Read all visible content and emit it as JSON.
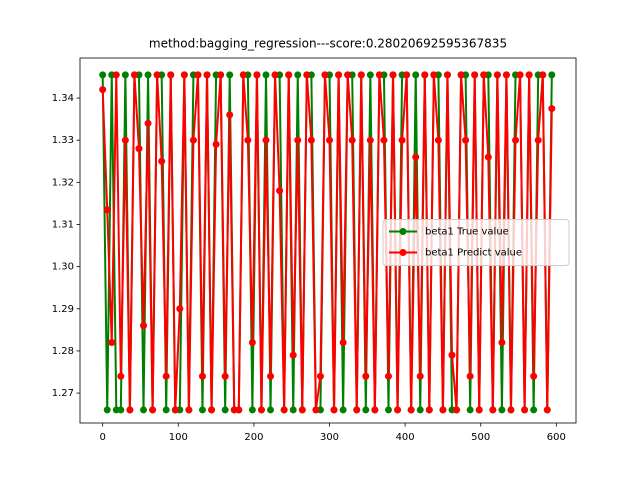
{
  "chart_data": {
    "type": "line",
    "title": "method:bagging_regression---score:0.28020692595367835",
    "x": [
      0,
      6,
      12,
      18,
      24,
      30,
      36,
      42,
      48,
      54,
      60,
      66,
      72,
      78,
      84,
      90,
      96,
      102,
      108,
      114,
      120,
      126,
      132,
      138,
      144,
      150,
      156,
      162,
      168,
      174,
      180,
      186,
      192,
      198,
      204,
      210,
      216,
      222,
      228,
      234,
      240,
      246,
      252,
      258,
      264,
      270,
      276,
      282,
      288,
      294,
      300,
      306,
      312,
      318,
      324,
      330,
      336,
      342,
      348,
      354,
      360,
      366,
      372,
      378,
      384,
      390,
      396,
      402,
      408,
      414,
      420,
      426,
      432,
      438,
      444,
      450,
      456,
      462,
      468,
      474,
      480,
      486,
      492,
      498,
      504,
      510,
      516,
      522,
      528,
      534,
      540,
      546,
      552,
      558,
      564,
      570,
      576,
      582,
      588,
      594
    ],
    "series": [
      {
        "name": "beta1 True value",
        "color": "#008000",
        "values": [
          1.3455,
          1.266,
          1.3455,
          1.266,
          1.266,
          1.3455,
          1.266,
          1.3455,
          1.3455,
          1.266,
          1.3455,
          1.266,
          1.3455,
          1.3455,
          1.266,
          1.3455,
          1.266,
          1.266,
          1.3455,
          1.266,
          1.3455,
          1.3455,
          1.266,
          1.3455,
          1.266,
          1.3455,
          1.3455,
          1.266,
          1.3455,
          1.266,
          1.266,
          1.3455,
          1.3455,
          1.266,
          1.3455,
          1.266,
          1.3455,
          1.266,
          1.3455,
          1.3455,
          1.266,
          1.3455,
          1.266,
          1.3455,
          1.266,
          1.3455,
          1.3455,
          1.266,
          1.266,
          1.3455,
          1.3455,
          1.266,
          1.3455,
          1.266,
          1.3455,
          1.3455,
          1.266,
          1.3455,
          1.266,
          1.3455,
          1.266,
          1.3455,
          1.3455,
          1.266,
          1.3455,
          1.266,
          1.3455,
          1.3455,
          1.266,
          1.3455,
          1.266,
          1.3455,
          1.266,
          1.3455,
          1.3455,
          1.266,
          1.3455,
          1.266,
          1.266,
          1.3455,
          1.3455,
          1.266,
          1.3455,
          1.266,
          1.3455,
          1.3455,
          1.266,
          1.3455,
          1.266,
          1.3455,
          1.266,
          1.3455,
          1.3455,
          1.266,
          1.3455,
          1.266,
          1.3455,
          1.3455,
          1.266,
          1.3455
        ]
      },
      {
        "name": "beta1 Predict value",
        "color": "#ff0000",
        "values": [
          1.342,
          1.3135,
          1.282,
          1.3455,
          1.274,
          1.33,
          1.266,
          1.3455,
          1.328,
          1.286,
          1.334,
          1.266,
          1.3455,
          1.325,
          1.274,
          1.3455,
          1.266,
          1.29,
          1.3455,
          1.266,
          1.33,
          1.3455,
          1.274,
          1.3455,
          1.266,
          1.329,
          1.3455,
          1.274,
          1.336,
          1.266,
          1.266,
          1.3455,
          1.33,
          1.282,
          1.3455,
          1.266,
          1.33,
          1.274,
          1.3455,
          1.318,
          1.266,
          1.3455,
          1.279,
          1.33,
          1.266,
          1.3455,
          1.33,
          1.266,
          1.274,
          1.3455,
          1.33,
          1.266,
          1.3455,
          1.282,
          1.3455,
          1.33,
          1.266,
          1.3455,
          1.274,
          1.33,
          1.266,
          1.3455,
          1.33,
          1.274,
          1.3455,
          1.266,
          1.33,
          1.3455,
          1.266,
          1.326,
          1.274,
          1.3455,
          1.266,
          1.3455,
          1.33,
          1.266,
          1.3455,
          1.279,
          1.266,
          1.3455,
          1.33,
          1.274,
          1.3455,
          1.266,
          1.3455,
          1.326,
          1.266,
          1.3455,
          1.282,
          1.3455,
          1.266,
          1.33,
          1.3455,
          1.266,
          1.3455,
          1.274,
          1.33,
          1.3455,
          1.266,
          1.3375
        ]
      }
    ],
    "xlim": [
      -30,
      626
    ],
    "ylim": [
      1.2629,
      1.3495
    ],
    "xticks": [
      0,
      100,
      200,
      300,
      400,
      500,
      600
    ],
    "yticks": [
      1.27,
      1.28,
      1.29,
      {
        "value": 1.3,
        "label": "1.30"
      },
      1.31,
      1.32,
      1.33,
      1.34
    ],
    "legend": "center right"
  }
}
